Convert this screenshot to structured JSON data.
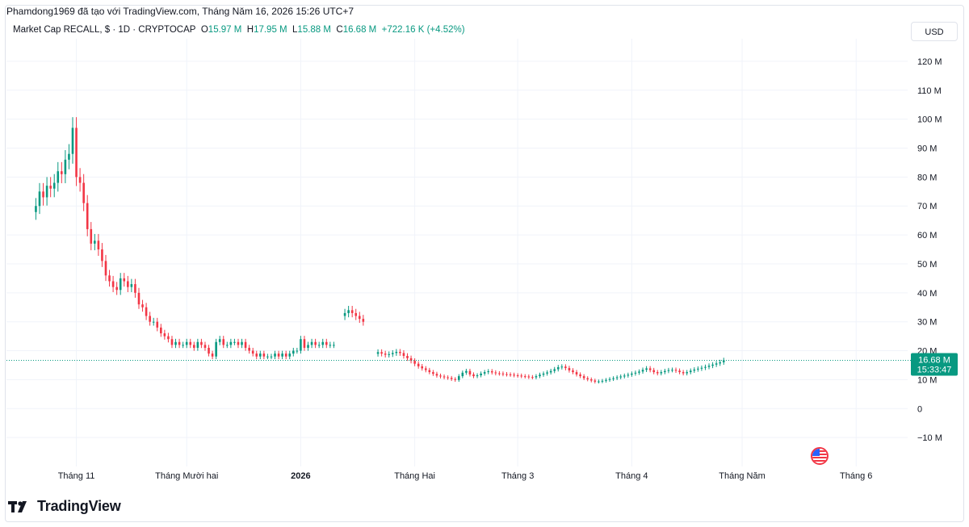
{
  "header": {
    "attribution": "Phamdong1969 đã tạo với TradingView.com, Tháng Năm 16, 2026 15:26 UTC+7"
  },
  "legend": {
    "symbol": "Market Cap RECALL, $ · 1D · CRYPTOCAP",
    "open_label": "O",
    "open": "15.97 M",
    "high_label": "H",
    "high": "17.95 M",
    "low_label": "L",
    "low": "15.88 M",
    "close_label": "C",
    "close": "16.68 M",
    "change": "+722.16 K (+4.52%)"
  },
  "currency_button": "USD",
  "price_badge": {
    "value": "16.68 M",
    "time": "15:33:47"
  },
  "brand": {
    "name": "TradingView"
  },
  "colors": {
    "up": "#089981",
    "down": "#f23645",
    "price_line": "#089981",
    "grid": "#f0f3fa",
    "text": "#131722"
  },
  "icons": {
    "logo": "tradingview-logo-icon",
    "flag": "us-flag-icon"
  },
  "chart_data": {
    "type": "candlestick",
    "title": "Market Cap RECALL, $ · 1D · CRYPTOCAP",
    "ylim": [
      -20,
      125
    ],
    "y_ticks": [
      120,
      110,
      100,
      90,
      80,
      70,
      60,
      50,
      40,
      30,
      20,
      10,
      0,
      -10
    ],
    "y_tick_labels": [
      "120 M",
      "110 M",
      "100 M",
      "90 M",
      "80 M",
      "70 M",
      "60 M",
      "50 M",
      "40 M",
      "30 M",
      "20 M",
      "10 M",
      "0",
      "−10 M"
    ],
    "x_range": [
      "2025-10-13",
      "2026-06-15"
    ],
    "x_ticks": [
      {
        "date": "2025-11-01",
        "label": "Tháng 11",
        "bold": false
      },
      {
        "date": "2025-12-01",
        "label": "Tháng Mười hai",
        "bold": false
      },
      {
        "date": "2026-01-01",
        "label": "2026",
        "bold": true
      },
      {
        "date": "2026-02-01",
        "label": "Tháng Hai",
        "bold": false
      },
      {
        "date": "2026-03-01",
        "label": "Tháng 3",
        "bold": false
      },
      {
        "date": "2026-04-01",
        "label": "Tháng 4",
        "bold": false
      },
      {
        "date": "2026-05-01",
        "label": "Tháng Năm",
        "bold": false
      },
      {
        "date": "2026-06-01",
        "label": "Tháng 6",
        "bold": false
      }
    ],
    "last_price": 16.68,
    "units": "M USD",
    "segments": [
      {
        "start": "2025-10-21",
        "close": [
          70,
          75,
          73,
          77,
          76,
          78,
          82,
          81,
          86,
          88,
          97,
          80,
          78,
          71,
          62,
          57,
          58,
          55,
          51,
          46,
          44,
          42,
          41,
          45,
          44,
          42,
          43,
          40,
          36,
          35,
          32,
          30,
          30,
          28,
          26,
          25,
          24,
          22,
          23,
          22,
          22,
          23,
          22,
          21,
          23,
          22,
          21,
          19,
          18,
          23,
          24,
          22,
          22,
          23,
          23,
          22,
          23,
          21,
          20,
          19,
          18,
          19,
          18,
          18,
          18,
          19,
          18,
          19,
          18,
          19,
          20,
          20,
          24,
          21,
          22,
          23,
          22,
          22,
          23,
          22,
          22,
          22
        ]
      },
      {
        "start": "2026-01-13",
        "close": [
          33,
          34,
          33,
          32,
          31,
          30
        ]
      },
      {
        "start": "2026-01-22",
        "close": [
          19.5,
          19,
          18.6,
          18.8,
          19.2,
          19.6,
          19.2,
          18.2,
          17.4,
          16.5,
          15.5,
          14.6,
          13.9,
          13.3,
          12.6,
          12,
          11.4,
          11.1,
          10.8,
          10.6,
          10.2,
          9.9,
          11.2,
          12.4,
          13,
          11.8,
          11.2,
          11.5,
          12.1,
          12.6,
          12.9,
          12.5,
          12.2,
          12.1,
          11.9,
          11.8,
          11.7,
          11.5,
          11.4,
          11.2,
          11.1,
          10.9,
          10.8,
          11.2,
          11.7,
          12.1,
          12.5,
          13,
          13.6,
          14.3,
          14.5,
          14,
          13.2,
          12.6,
          11.8,
          11.2,
          10.5,
          10.1,
          9.7,
          9.3,
          9.4,
          9.6,
          9.9,
          10.2,
          10.5,
          10.8,
          11.1,
          11.4,
          11.7,
          12.1,
          12.4,
          12.8,
          13.4,
          13.9,
          13.3,
          12.6,
          12.2,
          12.6,
          13,
          13.3,
          13.4,
          13.1,
          12.6,
          12.2,
          12.6,
          13.1,
          13.5,
          13.8,
          14.1,
          14.4,
          14.8,
          15.2,
          15.6,
          16,
          16.68
        ]
      }
    ]
  }
}
